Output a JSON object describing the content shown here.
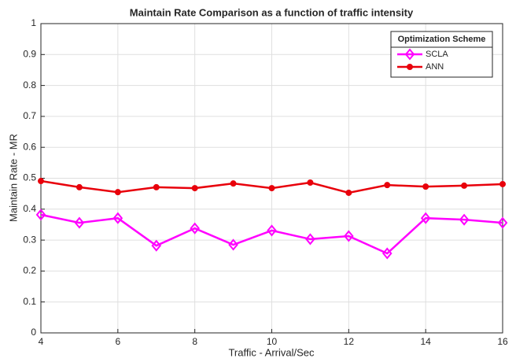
{
  "chart_data": {
    "type": "line",
    "title": "Maintain Rate Comparison as a function of traffic intensity",
    "x_label": "Traffic - Arrival/Sec",
    "y_label": "Maintain Rate - MR",
    "x": [
      4,
      5,
      6,
      7,
      8,
      9,
      10,
      11,
      12,
      13,
      14,
      15,
      16
    ],
    "series": [
      {
        "name": "SCLA",
        "color": "#ff00ff",
        "marker": "diamond",
        "values": [
          0.382,
          0.356,
          0.371,
          0.282,
          0.338,
          0.285,
          0.331,
          0.303,
          0.313,
          0.257,
          0.371,
          0.366,
          0.356
        ]
      },
      {
        "name": "ANN",
        "color": "#e8000b",
        "marker": "circle",
        "values": [
          0.491,
          0.471,
          0.455,
          0.471,
          0.468,
          0.483,
          0.468,
          0.486,
          0.453,
          0.478,
          0.473,
          0.476,
          0.481
        ]
      }
    ],
    "xlim": [
      4,
      16
    ],
    "xticks": [
      4,
      6,
      8,
      10,
      12,
      14,
      16
    ],
    "ylim": [
      0,
      1
    ],
    "yticks": [
      0,
      0.1,
      0.2,
      0.3,
      0.4,
      0.5,
      0.6,
      0.7,
      0.8,
      0.9,
      1
    ],
    "grid": true,
    "legend_title": "Optimization Scheme",
    "legend_position": "upper right"
  }
}
